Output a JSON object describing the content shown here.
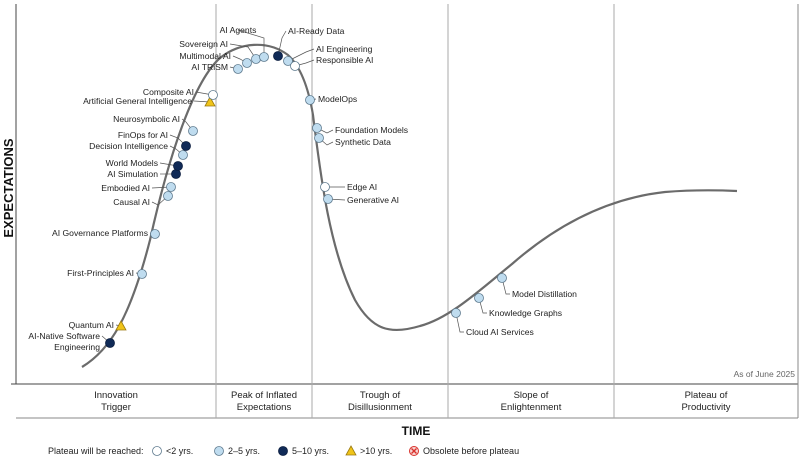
{
  "chart_data": {
    "type": "hype-cycle",
    "title": "",
    "xlabel": "TIME",
    "ylabel": "EXPECTATIONS",
    "as_of": "As of June 2025",
    "phases": [
      [
        "Innovation",
        "Trigger"
      ],
      [
        "Peak of Inflated",
        "Expectations"
      ],
      [
        "Trough of",
        "Disillusionment"
      ],
      [
        "Slope of",
        "Enlightenment"
      ],
      [
        "Plateau of",
        "Productivity"
      ]
    ],
    "legend": {
      "title": "Plateau will be reached:",
      "items": [
        {
          "key": "lt2",
          "label": "<2 yrs."
        },
        {
          "key": "2to5",
          "label": "2–5 yrs."
        },
        {
          "key": "5to10",
          "label": "5–10 yrs."
        },
        {
          "key": "gt10",
          "label": ">10 yrs."
        },
        {
          "key": "obsolete",
          "label": "Obsolete before plateau"
        }
      ]
    },
    "category_colors": {
      "lt2": "#ffffff",
      "2to5": "#bfdcef",
      "5to10": "#102a57",
      "gt10": "#f0c419",
      "obsolete": "#d9312b"
    },
    "technologies": [
      {
        "name": "AI-Native Software Engineering",
        "lines": [
          "AI-Native Software",
          "Engineering"
        ],
        "category": "5to10"
      },
      {
        "name": "Quantum AI",
        "lines": [
          "Quantum AI"
        ],
        "category": "gt10"
      },
      {
        "name": "First-Principles AI",
        "lines": [
          "First-Principles AI"
        ],
        "category": "2to5"
      },
      {
        "name": "AI Governance Platforms",
        "lines": [
          "AI Governance Platforms"
        ],
        "category": "2to5"
      },
      {
        "name": "Causal AI",
        "lines": [
          "Causal AI"
        ],
        "category": "2to5"
      },
      {
        "name": "Embodied AI",
        "lines": [
          "Embodied AI"
        ],
        "category": "2to5"
      },
      {
        "name": "AI Simulation",
        "lines": [
          "AI Simulation"
        ],
        "category": "5to10"
      },
      {
        "name": "World Models",
        "lines": [
          "World Models"
        ],
        "category": "5to10"
      },
      {
        "name": "Decision Intelligence",
        "lines": [
          "Decision Intelligence"
        ],
        "category": "2to5"
      },
      {
        "name": "FinOps for AI",
        "lines": [
          "FinOps for AI"
        ],
        "category": "5to10"
      },
      {
        "name": "Neurosymbolic AI",
        "lines": [
          "Neurosymbolic AI"
        ],
        "category": "2to5"
      },
      {
        "name": "Artificial General Intelligence",
        "lines": [
          "Artificial General Intelligence"
        ],
        "category": "gt10"
      },
      {
        "name": "Composite AI",
        "lines": [
          "Composite AI"
        ],
        "category": "lt2"
      },
      {
        "name": "AI TRiSM",
        "lines": [
          "AI TRiSM"
        ],
        "category": "2to5"
      },
      {
        "name": "Multimodal AI",
        "lines": [
          "Multimodal AI"
        ],
        "category": "2to5"
      },
      {
        "name": "Sovereign AI",
        "lines": [
          "Sovereign AI"
        ],
        "category": "2to5"
      },
      {
        "name": "AI Agents",
        "lines": [
          "AI Agents"
        ],
        "category": "2to5"
      },
      {
        "name": "AI-Ready Data",
        "lines": [
          "AI-Ready Data"
        ],
        "category": "5to10"
      },
      {
        "name": "AI Engineering",
        "lines": [
          "AI Engineering"
        ],
        "category": "2to5"
      },
      {
        "name": "Responsible AI",
        "lines": [
          "Responsible AI"
        ],
        "category": "lt2"
      },
      {
        "name": "ModelOps",
        "lines": [
          "ModelOps"
        ],
        "category": "2to5"
      },
      {
        "name": "Foundation Models",
        "lines": [
          "Foundation Models"
        ],
        "category": "2to5"
      },
      {
        "name": "Synthetic Data",
        "lines": [
          "Synthetic Data"
        ],
        "category": "2to5"
      },
      {
        "name": "Edge AI",
        "lines": [
          "Edge AI"
        ],
        "category": "lt2"
      },
      {
        "name": "Generative AI",
        "lines": [
          "Generative AI"
        ],
        "category": "2to5"
      },
      {
        "name": "Cloud AI Services",
        "lines": [
          "Cloud AI Services"
        ],
        "category": "2to5"
      },
      {
        "name": "Knowledge Graphs",
        "lines": [
          "Knowledge Graphs"
        ],
        "category": "2to5"
      },
      {
        "name": "Model Distillation",
        "lines": [
          "Model Distillation"
        ],
        "category": "2to5"
      }
    ]
  }
}
